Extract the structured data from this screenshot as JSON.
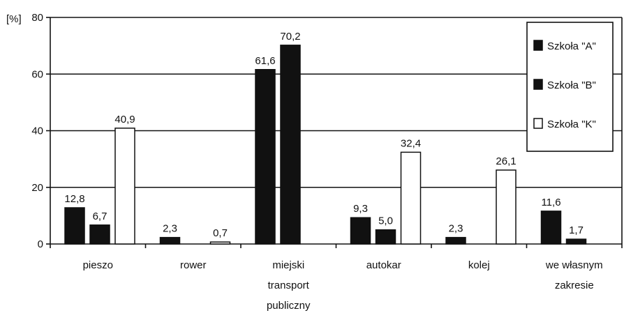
{
  "chart_data": {
    "type": "bar",
    "ylabel": "[%]",
    "ylim": [
      0,
      80
    ],
    "yticks": [
      0,
      20,
      40,
      60,
      80
    ],
    "grid": true,
    "legend_position": "top-right",
    "categories": [
      [
        "pieszo"
      ],
      [
        "rower"
      ],
      [
        "miejski",
        "transport",
        "publiczny"
      ],
      [
        "autokar"
      ],
      [
        "kolej"
      ],
      [
        "we własnym",
        "zakresie"
      ]
    ],
    "series": [
      {
        "name": "Szkoła \"A\"",
        "color": "#111111",
        "values": [
          12.8,
          2.3,
          61.6,
          9.3,
          2.3,
          11.6
        ],
        "labels": [
          "12,8",
          "2,3",
          "61,6",
          "9,3",
          "2,3",
          "11,6"
        ]
      },
      {
        "name": "Szkoła \"B\"",
        "color": "#111111",
        "values": [
          6.7,
          null,
          70.2,
          5.0,
          null,
          1.7
        ],
        "labels": [
          "6,7",
          "",
          "70,2",
          "5,0",
          "",
          "1,7"
        ]
      },
      {
        "name": "Szkoła \"K\"",
        "color": "#ffffff",
        "values": [
          40.9,
          0.7,
          null,
          32.4,
          26.1,
          null
        ],
        "labels": [
          "40,9",
          "0,7",
          "",
          "32,4",
          "26,1",
          ""
        ]
      }
    ]
  }
}
